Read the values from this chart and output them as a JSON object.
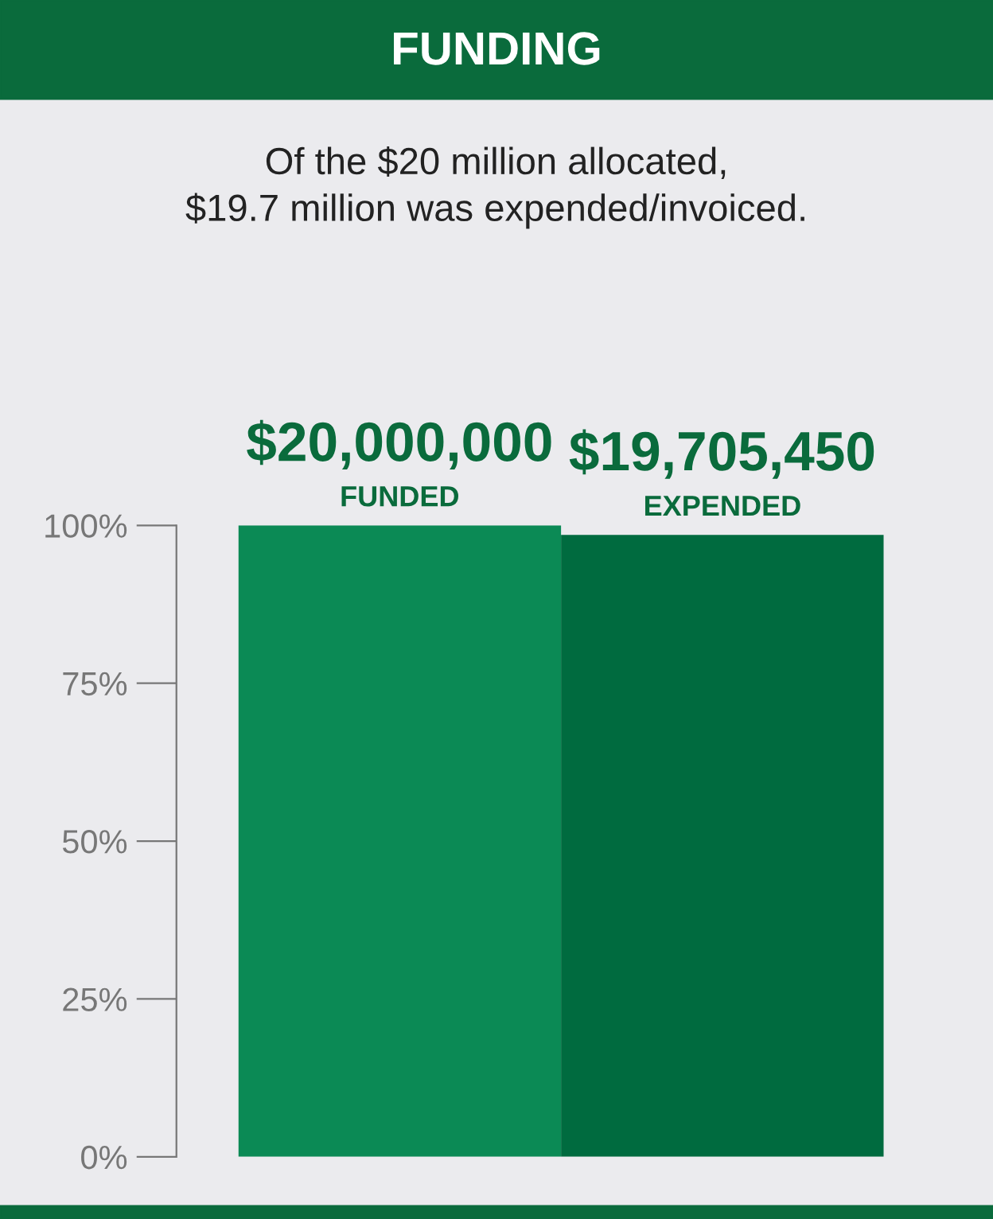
{
  "chart_data": {
    "type": "bar",
    "title": "FUNDING",
    "subtitle": "Of the $20 million allocated,\n$19.7 million was expended/invoiced.",
    "categories": [
      "FUNDED",
      "EXPENDED"
    ],
    "values": [
      100,
      98.5
    ],
    "colors": [
      "#0b8a55",
      "#006b3f"
    ],
    "annotations": [
      {
        "text": "$20,000,000",
        "x": "FUNDED",
        "y": 100
      },
      {
        "text": "$19,705,450",
        "x": "EXPENDED",
        "y": 98.5
      }
    ],
    "ylim": [
      0,
      100
    ],
    "yticks": [
      {
        "value": 0,
        "label": "0%"
      },
      {
        "value": 25,
        "label": "25%"
      },
      {
        "value": 50,
        "label": "50%"
      },
      {
        "value": 75,
        "label": "75%"
      },
      {
        "value": 100,
        "label": "100%"
      }
    ],
    "grid": false,
    "legend": false
  }
}
